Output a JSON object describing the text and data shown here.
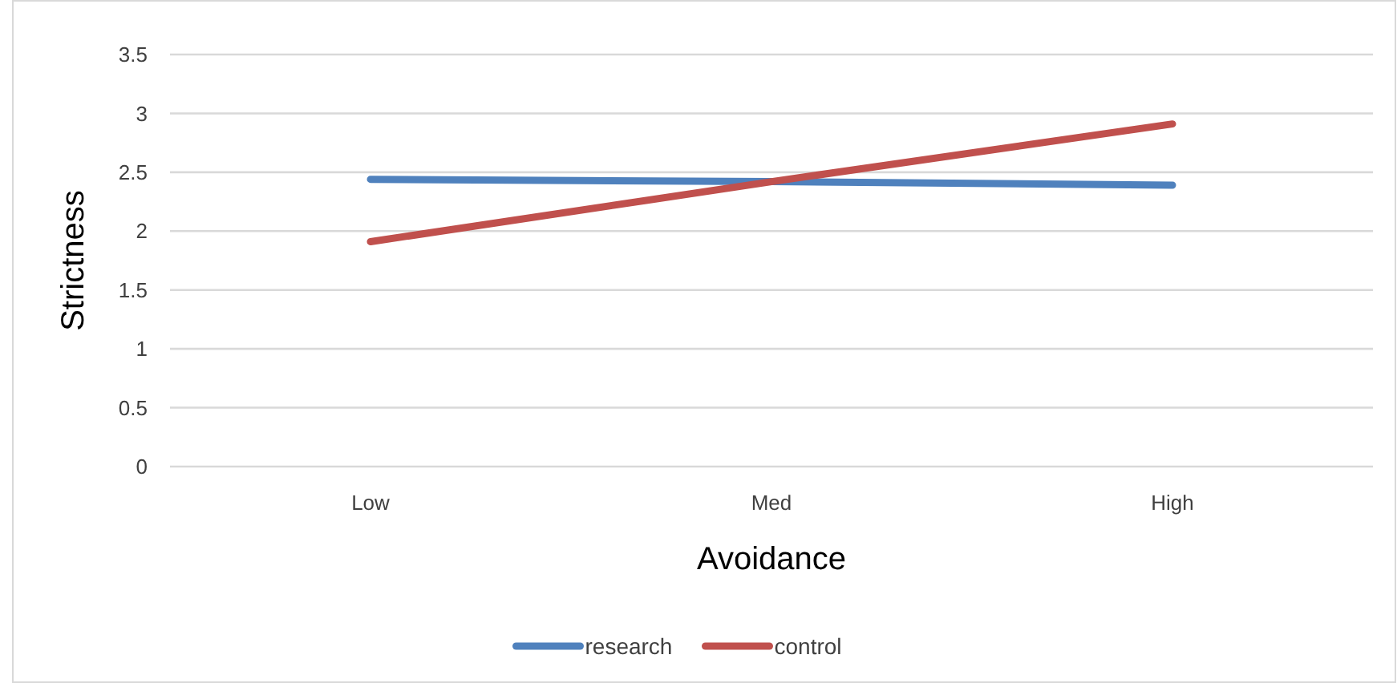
{
  "chart_data": {
    "type": "line",
    "xlabel": "Avoidance",
    "ylabel": "Strictness",
    "categories": [
      "Low",
      "Med",
      "High"
    ],
    "series": [
      {
        "name": "research",
        "color": "#4f81bd",
        "values": [
          2.44,
          2.42,
          2.39
        ]
      },
      {
        "name": "control",
        "color": "#c0504d",
        "values": [
          1.91,
          2.42,
          2.91
        ]
      }
    ],
    "ylim": [
      0,
      3.5
    ],
    "yticks": [
      0,
      0.5,
      1,
      1.5,
      2,
      2.5,
      3,
      3.5
    ],
    "grid": "y",
    "legend": "bottom",
    "marker": "none",
    "line_style": "solid"
  }
}
